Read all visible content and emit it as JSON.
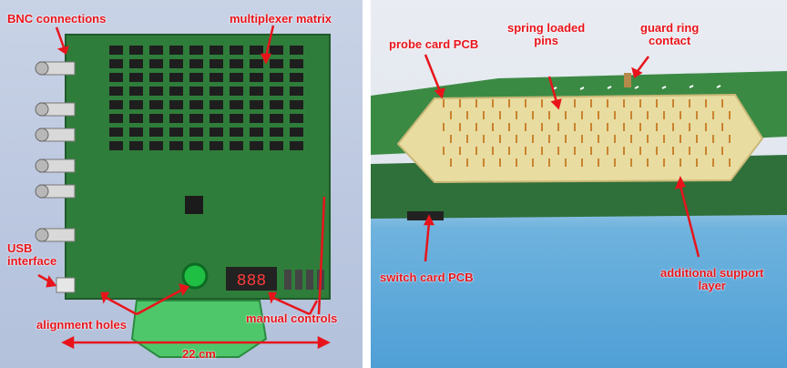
{
  "left_panel": {
    "labels": {
      "bnc": "BNC connections",
      "matrix": "multiplexer matrix",
      "usb": "USB\ninterface",
      "alignment": "alignment holes",
      "manual": "manual controls",
      "size": "22 cm"
    },
    "display_digits": "888"
  },
  "right_panel": {
    "labels": {
      "probe_card": "probe card PCB",
      "spring_pins": "spring loaded\npins",
      "guard_ring": "guard ring\ncontact",
      "switch_card": "switch card PCB",
      "support_layer": "additional support\nlayer"
    }
  },
  "colors": {
    "annotation": "#e8141b",
    "pcb_green": "#2f7d3a",
    "support_layer": "#e8dca0"
  }
}
